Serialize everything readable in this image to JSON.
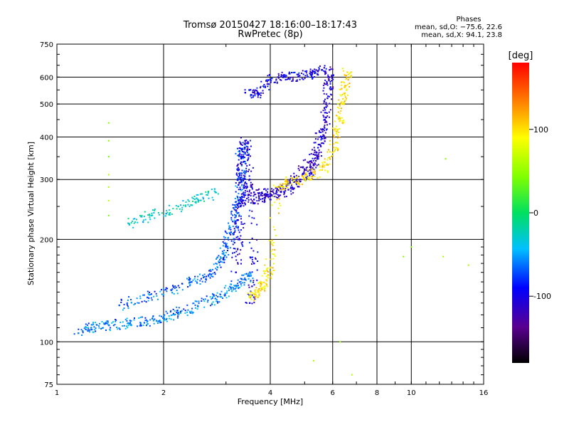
{
  "title_line1": "Tromsø 20150427 18:16:00–18:17:43",
  "title_line2": "RwPretec (8p)",
  "stats": {
    "header": "Phases",
    "line_o": "mean, sd,O: −75.6, 22.6",
    "line_x": "mean, sd,X:  94.1, 23.8"
  },
  "chart_data": {
    "type": "scatter",
    "xlabel": "Frequency [MHz]",
    "ylabel": "Stationary phase Virtual Height [km]",
    "x_scale": "log",
    "y_scale": "log",
    "xlim": [
      1,
      16
    ],
    "ylim": [
      75,
      750
    ],
    "x_ticks": [
      1,
      2,
      4,
      6,
      8,
      10,
      16
    ],
    "y_ticks": [
      75,
      100,
      200,
      300,
      400,
      500,
      600,
      750
    ],
    "grid": true,
    "colorbar": {
      "label": "[deg]",
      "range": [
        -180,
        180
      ],
      "ticks": [
        100,
        0,
        -100
      ],
      "colormap": "rainbow"
    },
    "series": [
      {
        "trace": "E/F1 low trace",
        "color_phase": -60,
        "points": [
          [
            1.15,
            106
          ],
          [
            1.25,
            110
          ],
          [
            1.4,
            112
          ],
          [
            1.6,
            113
          ],
          [
            1.8,
            115
          ],
          [
            2.0,
            118
          ],
          [
            2.2,
            122
          ],
          [
            2.5,
            127
          ],
          [
            2.8,
            134
          ],
          [
            3.1,
            143
          ],
          [
            3.3,
            150
          ],
          [
            3.5,
            156
          ]
        ]
      },
      {
        "trace": "E/F1 scatter",
        "color_phase": -70,
        "points": [
          [
            1.5,
            128
          ],
          [
            1.8,
            135
          ],
          [
            2.1,
            142
          ],
          [
            2.4,
            150
          ],
          [
            2.7,
            158
          ],
          [
            2.9,
            172
          ],
          [
            3.0,
            190
          ],
          [
            3.1,
            210
          ],
          [
            3.2,
            235
          ],
          [
            3.25,
            260
          ],
          [
            3.3,
            300
          ],
          [
            3.3,
            350
          ],
          [
            3.4,
            380
          ]
        ]
      },
      {
        "trace": "F1 cusp",
        "color_phase": -100,
        "points": [
          [
            3.2,
            160
          ],
          [
            3.25,
            200
          ],
          [
            3.3,
            250
          ],
          [
            3.3,
            300
          ],
          [
            3.35,
            350
          ],
          [
            3.4,
            390
          ],
          [
            3.5,
            300
          ],
          [
            3.6,
            170
          ],
          [
            3.5,
            130
          ]
        ]
      },
      {
        "trace": "F2 O-trace",
        "color_phase": -110,
        "points": [
          [
            3.3,
            265
          ],
          [
            3.6,
            262
          ],
          [
            4.0,
            268
          ],
          [
            4.5,
            280
          ],
          [
            5.0,
            300
          ],
          [
            5.3,
            330
          ],
          [
            5.5,
            380
          ],
          [
            5.7,
            450
          ],
          [
            5.8,
            520
          ],
          [
            5.85,
            600
          ],
          [
            5.88,
            630
          ]
        ]
      },
      {
        "trace": "F2 upper bundle",
        "color_phase": -110,
        "points": [
          [
            3.3,
            300
          ],
          [
            3.6,
            275
          ],
          [
            4.0,
            272
          ],
          [
            4.5,
            290
          ],
          [
            5.0,
            320
          ],
          [
            5.4,
            360
          ],
          [
            5.6,
            420
          ]
        ]
      },
      {
        "trace": "Spread F high",
        "color_phase": -100,
        "points": [
          [
            3.4,
            540
          ],
          [
            3.7,
            535
          ],
          [
            4.0,
            590
          ],
          [
            4.4,
            600
          ],
          [
            4.8,
            602
          ],
          [
            5.2,
            610
          ],
          [
            5.6,
            630
          ]
        ]
      },
      {
        "trace": "X-trace",
        "color_phase": 100,
        "points": [
          [
            3.5,
            135
          ],
          [
            3.7,
            140
          ],
          [
            3.9,
            152
          ],
          [
            4.0,
            165
          ],
          [
            4.2,
            285
          ],
          [
            4.5,
            295
          ],
          [
            5.0,
            302
          ],
          [
            5.6,
            320
          ],
          [
            6.0,
            360
          ],
          [
            6.2,
            420
          ],
          [
            6.4,
            500
          ],
          [
            6.5,
            560
          ],
          [
            6.6,
            620
          ]
        ]
      },
      {
        "trace": "Oblique bits",
        "color_phase": -30,
        "points": [
          [
            1.6,
            222
          ],
          [
            1.85,
            235
          ],
          [
            2.2,
            250
          ],
          [
            2.5,
            262
          ],
          [
            2.8,
            275
          ]
        ]
      },
      {
        "trace": "Isolated",
        "color_phase": 50,
        "points": [
          [
            1.4,
            440
          ],
          [
            1.4,
            390
          ],
          [
            1.4,
            350
          ],
          [
            1.4,
            310
          ],
          [
            1.4,
            285
          ],
          [
            1.4,
            260
          ],
          [
            1.4,
            235
          ],
          [
            12.5,
            345
          ],
          [
            10.0,
            190
          ],
          [
            12.3,
            178
          ],
          [
            9.5,
            178
          ],
          [
            14.5,
            168
          ],
          [
            6.3,
            100
          ],
          [
            6.8,
            80
          ],
          [
            5.3,
            88
          ]
        ]
      }
    ]
  }
}
